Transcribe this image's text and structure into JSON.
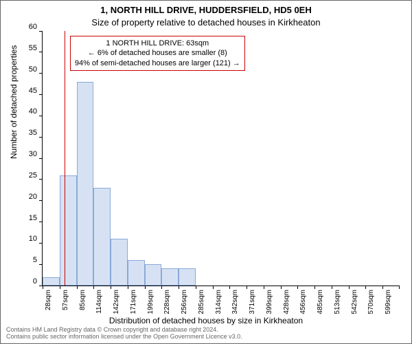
{
  "title_line1": "1, NORTH HILL DRIVE, HUDDERSFIELD, HD5 0EH",
  "title_line2": "Size of property relative to detached houses in Kirkheaton",
  "chart": {
    "type": "histogram",
    "ylabel": "Number of detached properties",
    "xlabel": "Distribution of detached houses by size in Kirkheaton",
    "ylim": [
      0,
      60
    ],
    "ytick_step": 5,
    "bar_color": "#d6e2f3",
    "bar_border_color": "#8aa8d8",
    "background_color": "#ffffff",
    "axis_color": "#000000",
    "bars": [
      {
        "label": "28sqm",
        "value": 2
      },
      {
        "label": "57sqm",
        "value": 26
      },
      {
        "label": "85sqm",
        "value": 48
      },
      {
        "label": "114sqm",
        "value": 23
      },
      {
        "label": "142sqm",
        "value": 11
      },
      {
        "label": "171sqm",
        "value": 6
      },
      {
        "label": "199sqm",
        "value": 5
      },
      {
        "label": "228sqm",
        "value": 4
      },
      {
        "label": "256sqm",
        "value": 4
      },
      {
        "label": "285sqm",
        "value": 0
      },
      {
        "label": "314sqm",
        "value": 0
      },
      {
        "label": "342sqm",
        "value": 0
      },
      {
        "label": "371sqm",
        "value": 0
      },
      {
        "label": "399sqm",
        "value": 0
      },
      {
        "label": "428sqm",
        "value": 0
      },
      {
        "label": "456sqm",
        "value": 0
      },
      {
        "label": "485sqm",
        "value": 0
      },
      {
        "label": "513sqm",
        "value": 0
      },
      {
        "label": "542sqm",
        "value": 0
      },
      {
        "label": "570sqm",
        "value": 0
      },
      {
        "label": "599sqm",
        "value": 0
      }
    ],
    "marker": {
      "value_sqm": 63,
      "color": "#cc0000",
      "line1": "1 NORTH HILL DRIVE: 63sqm",
      "line2": "← 6% of detached houses are smaller (8)",
      "line3": "94% of semi-detached houses are larger (121) →"
    }
  },
  "attribution_line1": "Contains HM Land Registry data © Crown copyright and database right 2024.",
  "attribution_line2": "Contains public sector information licensed under the Open Government Licence v3.0.",
  "colors": {
    "border": "#666666",
    "text": "#000000",
    "attribution": "#666666"
  }
}
